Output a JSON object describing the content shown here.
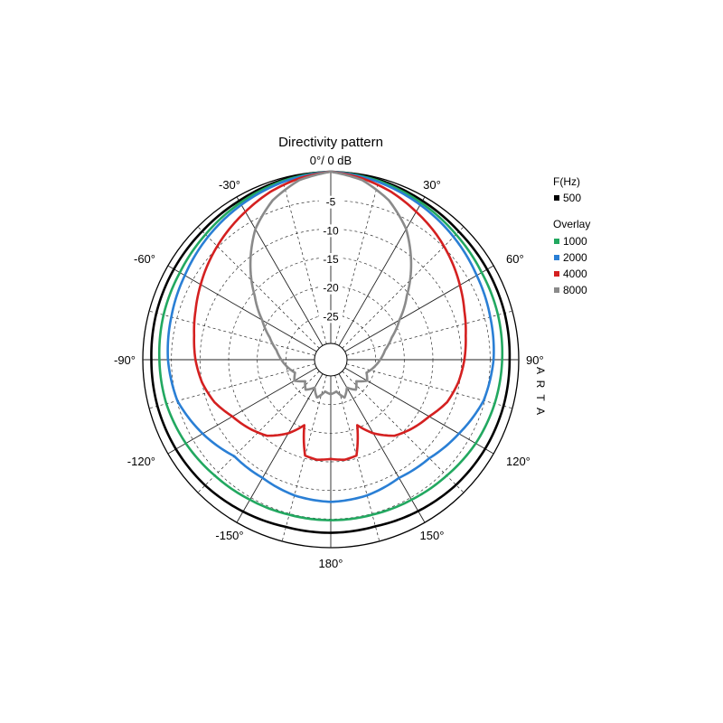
{
  "chart_data": {
    "type": "polar-line",
    "title": "Directivity pattern",
    "angle_unit": "deg",
    "angle_ticks": [
      {
        "angle": 0,
        "label": "0°/ 0 dB"
      },
      {
        "angle": 30,
        "label": "30°"
      },
      {
        "angle": 60,
        "label": "60°"
      },
      {
        "angle": 90,
        "label": "90°"
      },
      {
        "angle": 120,
        "label": "120°"
      },
      {
        "angle": 150,
        "label": "150°"
      },
      {
        "angle": 180,
        "label": "180°"
      },
      {
        "angle": -150,
        "label": "-150°"
      },
      {
        "angle": -120,
        "label": "-120°"
      },
      {
        "angle": -90,
        "label": "-90°"
      },
      {
        "angle": -60,
        "label": "-60°"
      },
      {
        "angle": -30,
        "label": "-30°"
      }
    ],
    "radial_range_db": [
      -30,
      0
    ],
    "radial_ticks": [
      {
        "value": -5,
        "label": "-5"
      },
      {
        "value": -10,
        "label": "-10"
      },
      {
        "value": -15,
        "label": "-15"
      },
      {
        "value": -20,
        "label": "-20"
      },
      {
        "value": -25,
        "label": "-25"
      }
    ],
    "grid": true,
    "legend_position": "right",
    "legend": {
      "primary_title": "F(Hz)",
      "overlay_title": "Overlay"
    },
    "series": [
      {
        "name": "500",
        "group": "primary",
        "color": "#000000",
        "points": [
          [
            0,
            0
          ],
          [
            15,
            -0.3
          ],
          [
            30,
            -0.8
          ],
          [
            45,
            -1.2
          ],
          [
            60,
            -1.3
          ],
          [
            75,
            -1.4
          ],
          [
            90,
            -1.6
          ],
          [
            105,
            -1.6
          ],
          [
            120,
            -1.7
          ],
          [
            135,
            -1.9
          ],
          [
            150,
            -2.3
          ],
          [
            165,
            -2.7
          ],
          [
            180,
            -2.6
          ],
          [
            -165,
            -2.6
          ],
          [
            -150,
            -2.2
          ],
          [
            -135,
            -1.8
          ],
          [
            -120,
            -1.6
          ],
          [
            -105,
            -1.5
          ],
          [
            -90,
            -1.5
          ],
          [
            -75,
            -1.3
          ],
          [
            -60,
            -1.2
          ],
          [
            -45,
            -1.1
          ],
          [
            -30,
            -0.8
          ],
          [
            -15,
            -0.3
          ]
        ]
      },
      {
        "name": "1000",
        "group": "overlay",
        "color": "#22a860",
        "points": [
          [
            0,
            0
          ],
          [
            15,
            -0.5
          ],
          [
            30,
            -1.2
          ],
          [
            45,
            -1.9
          ],
          [
            60,
            -2.4
          ],
          [
            75,
            -2.6
          ],
          [
            90,
            -2.9
          ],
          [
            105,
            -3.2
          ],
          [
            120,
            -3.6
          ],
          [
            135,
            -4.2
          ],
          [
            150,
            -4.6
          ],
          [
            165,
            -4.8
          ],
          [
            180,
            -4.8
          ],
          [
            -165,
            -4.8
          ],
          [
            -150,
            -4.6
          ],
          [
            -135,
            -4.2
          ],
          [
            -120,
            -3.6
          ],
          [
            -105,
            -3.1
          ],
          [
            -90,
            -2.9
          ],
          [
            -75,
            -2.6
          ],
          [
            -60,
            -2.4
          ],
          [
            -45,
            -1.9
          ],
          [
            -30,
            -1.2
          ],
          [
            -15,
            -0.5
          ]
        ]
      },
      {
        "name": "2000",
        "group": "overlay",
        "color": "#2a7fd5",
        "points": [
          [
            0,
            0
          ],
          [
            15,
            -0.7
          ],
          [
            30,
            -1.6
          ],
          [
            45,
            -2.5
          ],
          [
            60,
            -3.4
          ],
          [
            75,
            -4.0
          ],
          [
            90,
            -4.4
          ],
          [
            105,
            -5.2
          ],
          [
            120,
            -7.0
          ],
          [
            135,
            -8.5
          ],
          [
            150,
            -9.0
          ],
          [
            165,
            -8.3
          ],
          [
            180,
            -8.0
          ],
          [
            -165,
            -8.3
          ],
          [
            -150,
            -9.0
          ],
          [
            -135,
            -9.0
          ],
          [
            -120,
            -7.0
          ],
          [
            -105,
            -5.1
          ],
          [
            -90,
            -4.4
          ],
          [
            -75,
            -4.0
          ],
          [
            -60,
            -3.4
          ],
          [
            -45,
            -2.5
          ],
          [
            -30,
            -1.6
          ],
          [
            -15,
            -0.7
          ]
        ]
      },
      {
        "name": "4000",
        "group": "overlay",
        "color": "#d42020",
        "points": [
          [
            0,
            0
          ],
          [
            10,
            -0.7
          ],
          [
            20,
            -1.7
          ],
          [
            30,
            -3.0
          ],
          [
            40,
            -4.2
          ],
          [
            50,
            -5.5
          ],
          [
            60,
            -6.8
          ],
          [
            70,
            -8.0
          ],
          [
            80,
            -8.9
          ],
          [
            90,
            -9.5
          ],
          [
            100,
            -10.2
          ],
          [
            110,
            -11.2
          ],
          [
            120,
            -13.0
          ],
          [
            130,
            -14.2
          ],
          [
            140,
            -15.5
          ],
          [
            150,
            -18.0
          ],
          [
            158,
            -20.5
          ],
          [
            165,
            -15.5
          ],
          [
            172,
            -15.2
          ],
          [
            180,
            -15.5
          ],
          [
            -172,
            -15.2
          ],
          [
            -165,
            -15.5
          ],
          [
            -158,
            -20.5
          ],
          [
            -150,
            -18.0
          ],
          [
            -140,
            -15.5
          ],
          [
            -130,
            -14.2
          ],
          [
            -120,
            -13.0
          ],
          [
            -110,
            -11.2
          ],
          [
            -100,
            -10.0
          ],
          [
            -90,
            -9.2
          ],
          [
            -80,
            -8.6
          ],
          [
            -70,
            -7.7
          ],
          [
            -60,
            -6.6
          ],
          [
            -50,
            -5.4
          ],
          [
            -40,
            -4.2
          ],
          [
            -30,
            -3.0
          ],
          [
            -20,
            -1.7
          ],
          [
            -10,
            -0.7
          ]
        ]
      },
      {
        "name": "8000",
        "group": "overlay",
        "color": "#8a8a8a",
        "points": [
          [
            0,
            0
          ],
          [
            10,
            -1.0
          ],
          [
            20,
            -3.2
          ],
          [
            30,
            -6.5
          ],
          [
            40,
            -11.0
          ],
          [
            50,
            -15.5
          ],
          [
            60,
            -19.0
          ],
          [
            70,
            -21.5
          ],
          [
            80,
            -23.2
          ],
          [
            90,
            -24.2
          ],
          [
            100,
            -25.2
          ],
          [
            110,
            -26.2
          ],
          [
            120,
            -25.5
          ],
          [
            130,
            -27.0
          ],
          [
            140,
            -26.0
          ],
          [
            150,
            -27.2
          ],
          [
            160,
            -25.8
          ],
          [
            170,
            -27.2
          ],
          [
            180,
            -26.8
          ],
          [
            -170,
            -27.2
          ],
          [
            -160,
            -25.8
          ],
          [
            -150,
            -27.2
          ],
          [
            -140,
            -26.0
          ],
          [
            -130,
            -27.0
          ],
          [
            -120,
            -25.5
          ],
          [
            -110,
            -26.2
          ],
          [
            -100,
            -25.2
          ],
          [
            -90,
            -24.2
          ],
          [
            -80,
            -23.2
          ],
          [
            -70,
            -21.5
          ],
          [
            -60,
            -19.0
          ],
          [
            -50,
            -15.5
          ],
          [
            -40,
            -11.0
          ],
          [
            -30,
            -6.5
          ],
          [
            -20,
            -3.2
          ],
          [
            -10,
            -1.0
          ]
        ]
      }
    ],
    "watermark": "ARTA"
  }
}
